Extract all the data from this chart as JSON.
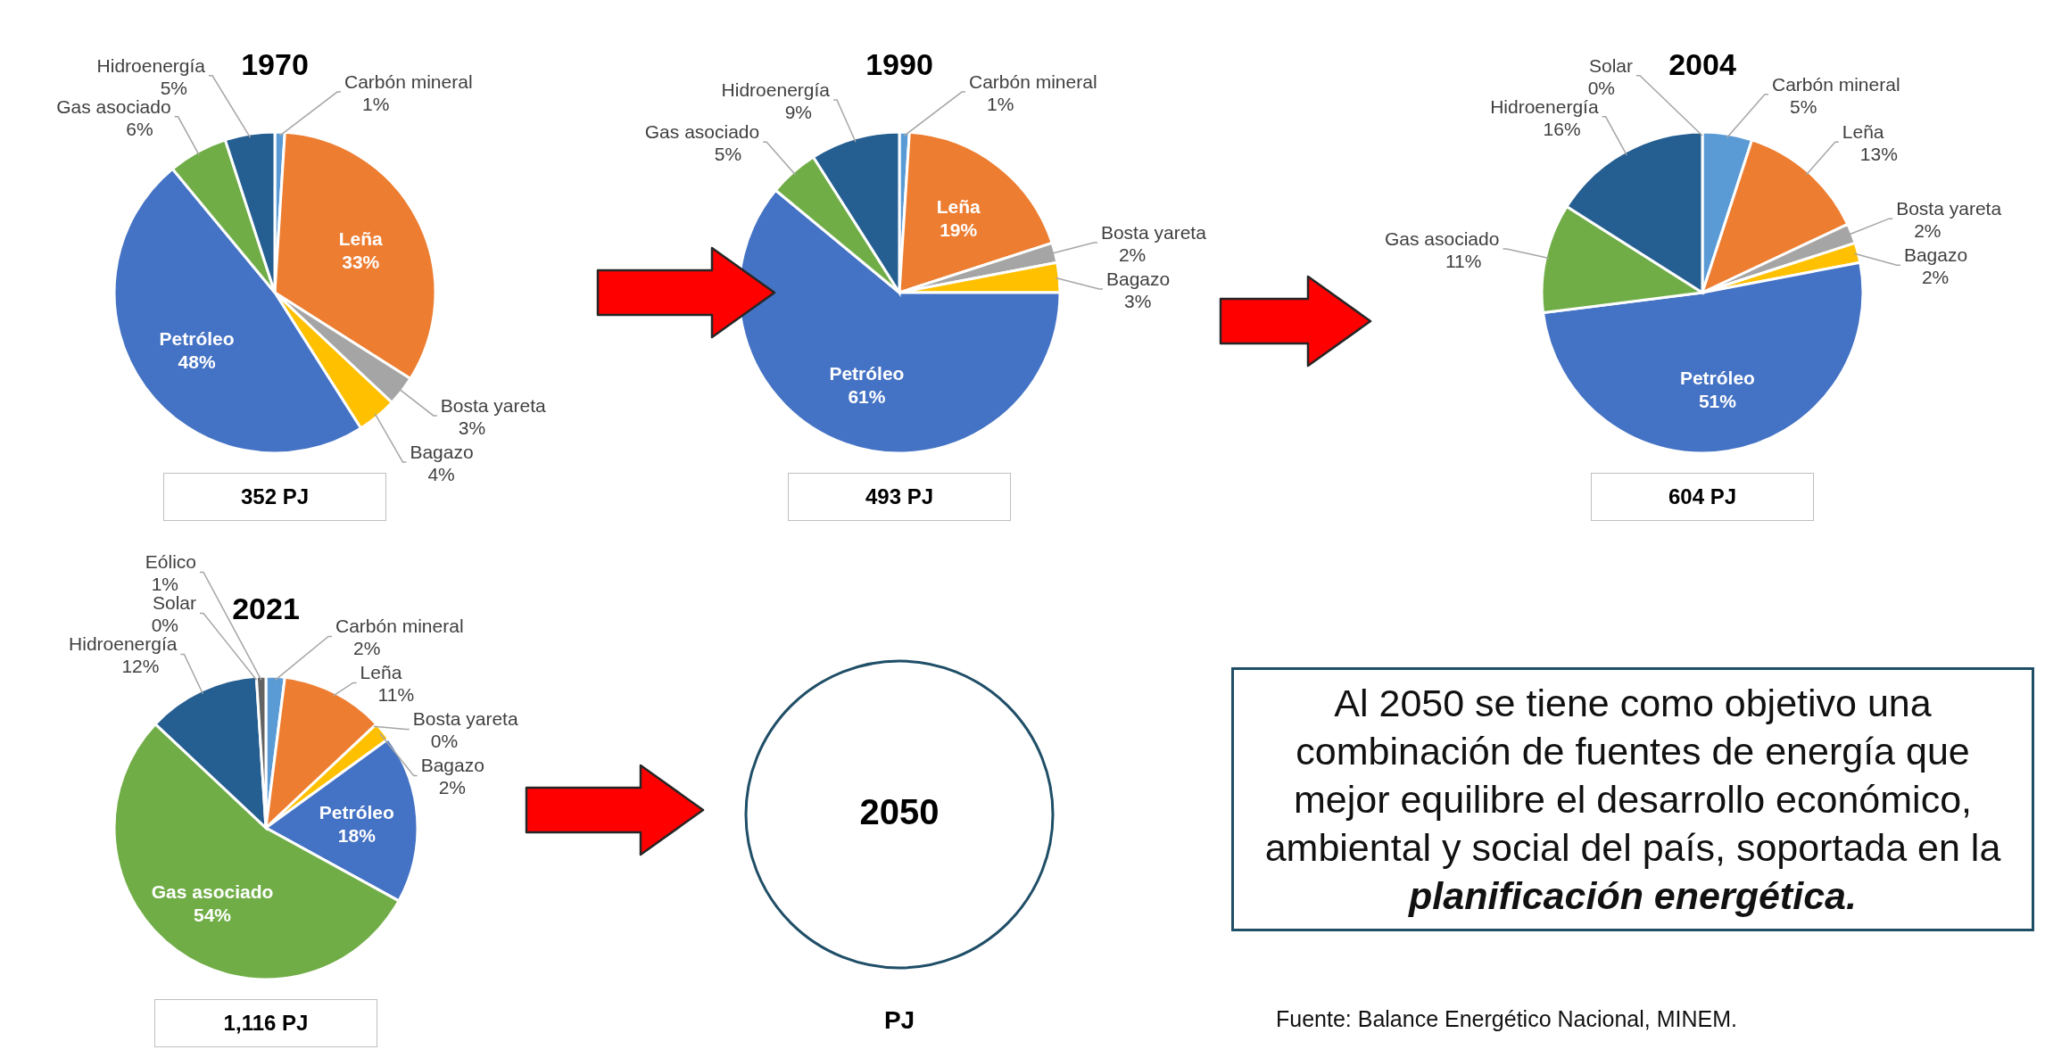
{
  "chart_data": [
    {
      "type": "pie",
      "title": "1970",
      "categories": [
        "Carbón mineral",
        "Leña",
        "Bosta yareta",
        "Bagazo",
        "Petróleo",
        "Gas asociado",
        "Hidroenergía"
      ],
      "values": [
        1,
        33,
        3,
        4,
        48,
        6,
        5
      ],
      "value_labels": [
        "1%",
        "33%",
        "3%",
        "4%",
        "48%",
        "6%",
        "5%"
      ],
      "colors": [
        "#5b9bd5",
        "#ed7d31",
        "#a5a5a5",
        "#ffc000",
        "#4472c4",
        "#70ad47",
        "#255e91"
      ],
      "annotations": [
        "352 PJ"
      ]
    },
    {
      "type": "pie",
      "title": "1990",
      "categories": [
        "Carbón mineral",
        "Leña",
        "Bosta yareta",
        "Bagazo",
        "Petróleo",
        "Gas asociado",
        "Hidroenergía"
      ],
      "values": [
        1,
        19,
        2,
        3,
        61,
        5,
        9
      ],
      "value_labels": [
        "1%",
        "19%",
        "2%",
        "3%",
        "61%",
        "5%",
        "9%"
      ],
      "colors": [
        "#5b9bd5",
        "#ed7d31",
        "#a5a5a5",
        "#ffc000",
        "#4472c4",
        "#70ad47",
        "#255e91"
      ],
      "annotations": [
        "493 PJ"
      ]
    },
    {
      "type": "pie",
      "title": "2004",
      "categories": [
        "Carbón mineral",
        "Leña",
        "Bosta yareta",
        "Bagazo",
        "Petróleo",
        "Gas asociado",
        "Hidroenergía",
        "Solar"
      ],
      "values": [
        5,
        13,
        2,
        2,
        51,
        11,
        16,
        0
      ],
      "value_labels": [
        "5%",
        "13%",
        "2%",
        "2%",
        "51%",
        "11%",
        "16%",
        "0%"
      ],
      "colors": [
        "#5b9bd5",
        "#ed7d31",
        "#a5a5a5",
        "#ffc000",
        "#4472c4",
        "#70ad47",
        "#255e91",
        "#9e480e"
      ],
      "annotations": [
        "604 PJ"
      ]
    },
    {
      "type": "pie",
      "title": "2021",
      "categories": [
        "Carbón mineral",
        "Leña",
        "Bosta yareta",
        "Bagazo",
        "Petróleo",
        "Gas asociado",
        "Hidroenergía",
        "Solar",
        "Eólico"
      ],
      "values": [
        2,
        11,
        0,
        2,
        18,
        54,
        12,
        0,
        1
      ],
      "value_labels": [
        "2%",
        "11%",
        "0%",
        "2%",
        "18%",
        "54%",
        "12%",
        "0%",
        "1%"
      ],
      "colors": [
        "#5b9bd5",
        "#ed7d31",
        "#a5a5a5",
        "#ffc000",
        "#4472c4",
        "#70ad47",
        "#255e91",
        "#9e480e",
        "#636363"
      ],
      "annotations": [
        "1,116 PJ"
      ]
    },
    {
      "type": "other",
      "title": "2050",
      "annotations": [
        "PJ"
      ]
    },
    {
      "type": "other",
      "annotations": [
        "Al 2050 se tiene como objetivo una combinación de fuentes de energía que mejor equilibre el desarrollo económico, ambiental y social del país, soportada en la",
        "planificación energética.",
        "Fuente: Balance Energético Nacional, MINEM."
      ]
    }
  ]
}
